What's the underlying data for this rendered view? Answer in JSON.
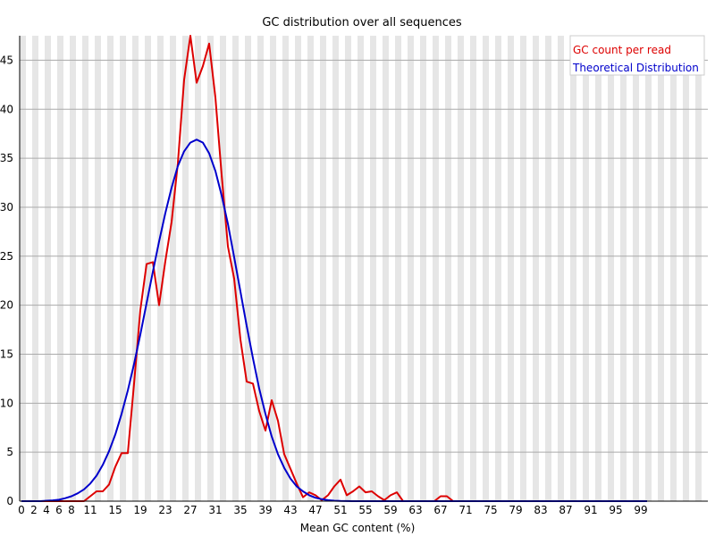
{
  "chart_data": {
    "type": "line",
    "title": "GC distribution over all sequences",
    "xlabel": "Mean GC content (%)",
    "ylabel": "",
    "xlim": [
      0,
      100
    ],
    "ylim": [
      0,
      47.5
    ],
    "x_ticks": [
      0,
      2,
      4,
      6,
      8,
      11,
      15,
      19,
      23,
      27,
      31,
      35,
      39,
      43,
      47,
      51,
      55,
      59,
      63,
      67,
      71,
      75,
      79,
      83,
      87,
      91,
      95,
      99
    ],
    "y_ticks": [
      0,
      5,
      10,
      15,
      20,
      25,
      30,
      35,
      40,
      45
    ],
    "grid": true,
    "legend_position": "top-right",
    "series": [
      {
        "name": "GC count per read",
        "color": "#dd0000",
        "x": [
          0,
          1,
          2,
          3,
          4,
          5,
          6,
          7,
          8,
          9,
          10,
          11,
          12,
          13,
          14,
          15,
          16,
          17,
          18,
          19,
          20,
          21,
          22,
          23,
          24,
          25,
          26,
          27,
          28,
          29,
          30,
          31,
          32,
          33,
          34,
          35,
          36,
          37,
          38,
          39,
          40,
          41,
          42,
          43,
          44,
          45,
          46,
          47,
          48,
          49,
          50,
          51,
          52,
          53,
          54,
          55,
          56,
          57,
          58,
          59,
          60,
          61,
          62,
          63,
          64,
          65,
          66,
          67,
          68,
          69,
          70,
          71,
          72,
          73,
          74,
          75,
          76,
          77,
          78,
          79,
          80,
          81,
          82,
          83,
          84,
          85,
          86,
          87,
          88,
          89,
          90,
          91,
          92,
          93,
          94,
          95,
          96,
          97,
          98,
          99,
          100
        ],
        "y": [
          0,
          0,
          0,
          0,
          0,
          0,
          0,
          0,
          0,
          0,
          0,
          0.5,
          1,
          1,
          1.7,
          3.5,
          4.9,
          4.9,
          12,
          19.5,
          24.2,
          24.4,
          20,
          24.5,
          28.5,
          34.5,
          43,
          47.5,
          42.7,
          44.4,
          46.7,
          41.2,
          33.3,
          26,
          22.7,
          16.5,
          12.2,
          12,
          9.2,
          7.2,
          10.3,
          8.2,
          4.8,
          3.3,
          1.8,
          0.4,
          0.9,
          0.6,
          0.1,
          0.6,
          1.5,
          2.2,
          0.6,
          1,
          1.5,
          0.9,
          1,
          0.5,
          0.1,
          0.6,
          0.9,
          0,
          0,
          0,
          0,
          0,
          0,
          0.5,
          0.5,
          0,
          0,
          0,
          0,
          0,
          0,
          0,
          0,
          0,
          0,
          0,
          0,
          0,
          0,
          0,
          0,
          0,
          0,
          0,
          0,
          0,
          0,
          0,
          0,
          0,
          0,
          0,
          0,
          0,
          0,
          0,
          0
        ]
      },
      {
        "name": "Theoretical Distribution",
        "color": "#0000cc",
        "x": [
          0,
          1,
          2,
          3,
          4,
          5,
          6,
          7,
          8,
          9,
          10,
          11,
          12,
          13,
          14,
          15,
          16,
          17,
          18,
          19,
          20,
          21,
          22,
          23,
          24,
          25,
          26,
          27,
          28,
          29,
          30,
          31,
          32,
          33,
          34,
          35,
          36,
          37,
          38,
          39,
          40,
          41,
          42,
          43,
          44,
          45,
          46,
          47,
          48,
          49,
          50,
          51,
          52,
          53,
          54,
          55,
          56,
          57,
          58,
          59,
          60,
          61,
          62,
          63,
          64,
          65,
          66,
          67,
          68,
          69,
          70,
          71,
          72,
          73,
          74,
          75,
          76,
          77,
          78,
          79,
          80,
          81,
          82,
          83,
          84,
          85,
          86,
          87,
          88,
          89,
          90,
          91,
          92,
          93,
          94,
          95,
          96,
          97,
          98,
          99,
          100
        ],
        "y": [
          0,
          0,
          0,
          0,
          0.05,
          0.08,
          0.15,
          0.3,
          0.5,
          0.8,
          1.2,
          1.8,
          2.6,
          3.7,
          5.1,
          6.8,
          8.9,
          11.3,
          14,
          17,
          20.2,
          23.4,
          26.5,
          29.4,
          32,
          34.2,
          35.7,
          36.6,
          36.9,
          36.6,
          35.5,
          33.7,
          31.2,
          28.3,
          24.9,
          21.4,
          17.9,
          14.6,
          11.5,
          8.9,
          6.6,
          4.8,
          3.4,
          2.3,
          1.5,
          1,
          0.6,
          0.35,
          0.2,
          0.1,
          0.05,
          0.02,
          0.01,
          0,
          0,
          0,
          0,
          0,
          0,
          0,
          0,
          0,
          0,
          0,
          0,
          0,
          0,
          0,
          0,
          0,
          0,
          0,
          0,
          0,
          0,
          0,
          0,
          0,
          0,
          0,
          0,
          0,
          0,
          0,
          0,
          0,
          0,
          0,
          0,
          0,
          0,
          0,
          0,
          0,
          0,
          0,
          0,
          0,
          0,
          0,
          0
        ]
      }
    ]
  }
}
